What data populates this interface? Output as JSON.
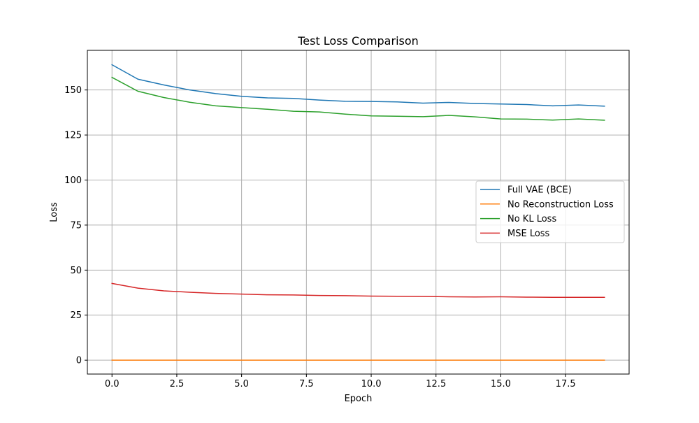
{
  "chart_data": {
    "type": "line",
    "title": "Test Loss Comparison",
    "xlabel": "Epoch",
    "ylabel": "Loss",
    "xlim": [
      -0.95,
      19.95
    ],
    "ylim": [
      -7.7,
      172.0
    ],
    "x_ticks": [
      0.0,
      2.5,
      5.0,
      7.5,
      10.0,
      12.5,
      15.0,
      17.5
    ],
    "x_tick_labels": [
      "0.0",
      "2.5",
      "5.0",
      "7.5",
      "10.0",
      "12.5",
      "15.0",
      "17.5"
    ],
    "y_ticks": [
      0,
      25,
      50,
      75,
      100,
      125,
      150
    ],
    "y_tick_labels": [
      "0",
      "25",
      "50",
      "75",
      "100",
      "125",
      "150"
    ],
    "grid": true,
    "legend_position": "center-right",
    "x": [
      0,
      1,
      2,
      3,
      4,
      5,
      6,
      7,
      8,
      9,
      10,
      11,
      12,
      13,
      14,
      15,
      16,
      17,
      18,
      19
    ],
    "series": [
      {
        "name": "Full VAE (BCE)",
        "color": "#1f77b4",
        "values": [
          164.0,
          156.0,
          152.8,
          150.0,
          148.0,
          146.5,
          145.6,
          145.3,
          144.4,
          143.7,
          143.6,
          143.4,
          142.7,
          143.1,
          142.5,
          142.2,
          141.9,
          141.2,
          141.7,
          141.0
        ]
      },
      {
        "name": "No Reconstruction Loss",
        "color": "#ff7f0e",
        "values": [
          0.0,
          0.0,
          0.0,
          0.0,
          0.0,
          0.0,
          0.0,
          0.0,
          0.0,
          0.0,
          0.0,
          0.0,
          0.0,
          0.0,
          0.0,
          0.0,
          0.0,
          0.0,
          0.0,
          0.0
        ]
      },
      {
        "name": "No KL Loss",
        "color": "#2ca02c",
        "values": [
          157.0,
          149.3,
          145.8,
          143.2,
          141.2,
          140.2,
          139.3,
          138.2,
          137.8,
          136.6,
          135.6,
          135.4,
          135.2,
          135.9,
          135.1,
          133.9,
          133.8,
          133.3,
          133.9,
          133.2
        ]
      },
      {
        "name": "MSE Loss",
        "color": "#d62728",
        "values": [
          42.6,
          40.0,
          38.5,
          37.7,
          37.1,
          36.7,
          36.3,
          36.2,
          35.9,
          35.8,
          35.6,
          35.5,
          35.4,
          35.2,
          35.1,
          35.2,
          35.0,
          34.9,
          34.9,
          34.9
        ]
      }
    ]
  }
}
